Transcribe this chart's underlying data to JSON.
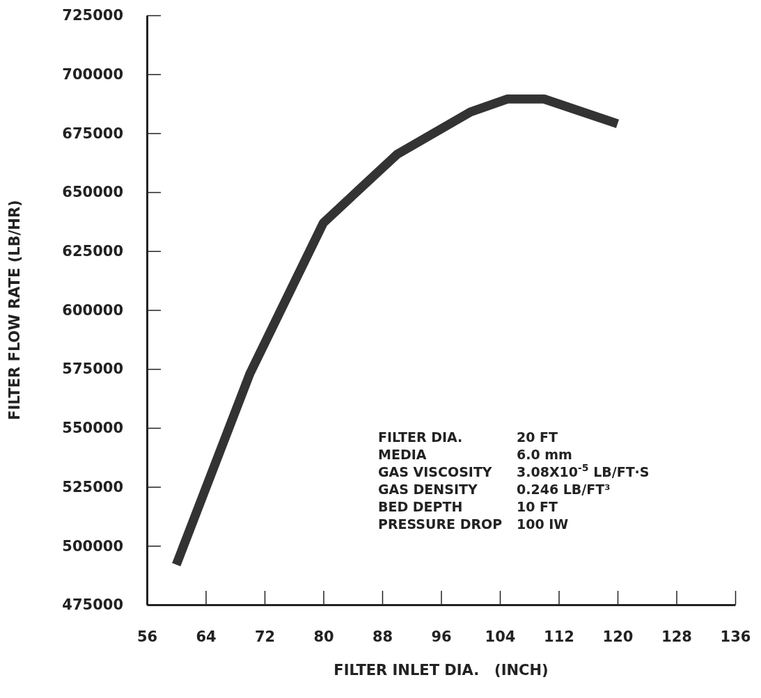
{
  "chart_data": {
    "type": "line",
    "xlabel": "FILTER INLET DIA.   (INCH)",
    "ylabel": "FILTER FLOW RATE (LB/HR)",
    "x": [
      60,
      70,
      80,
      90,
      100,
      105,
      110,
      120
    ],
    "series": [
      {
        "color": "#333333",
        "values": [
          492000,
          573000,
          637000,
          666000,
          684000,
          689500,
          689500,
          679000
        ]
      }
    ],
    "xlim": [
      56,
      136
    ],
    "xticks": [
      56,
      64,
      72,
      80,
      88,
      96,
      104,
      112,
      120,
      128,
      136
    ],
    "ylim": [
      475000,
      725000
    ],
    "yticks": [
      475000,
      500000,
      525000,
      550000,
      575000,
      600000,
      625000,
      650000,
      675000,
      700000,
      725000
    ],
    "grid": false,
    "marker": "none",
    "line_style": "solid",
    "annotations": [
      "FILTER DIA.",
      "20 FT",
      "MEDIA",
      "6.0 mm",
      "GAS VISCOSITY",
      "3.08X10$^{-5}$ LB/FT·S",
      "GAS DENSITY",
      "0.246 LB/FT³",
      "BED DEPTH",
      "10 FT",
      "PRESSURE DROP",
      "100 IW"
    ]
  }
}
